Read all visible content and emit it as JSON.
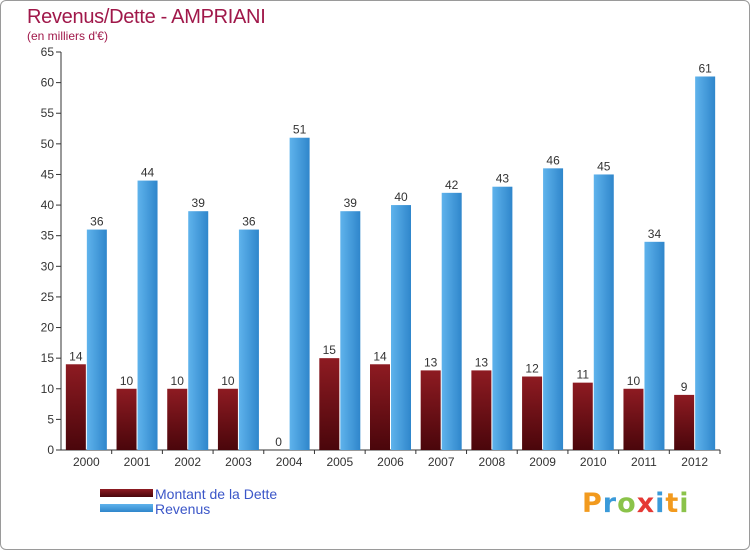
{
  "header": {
    "title": "Revenus/Dette - AMPRIANI",
    "subtitle": "(en milliers d'€)"
  },
  "chart_data": {
    "type": "bar",
    "categories": [
      "2000",
      "2001",
      "2002",
      "2003",
      "2004",
      "2005",
      "2006",
      "2007",
      "2008",
      "2009",
      "2010",
      "2011",
      "2012"
    ],
    "series": [
      {
        "name": "Montant de la Dette",
        "color": "#7a0f16",
        "values": [
          14,
          10,
          10,
          10,
          0,
          15,
          14,
          13,
          13,
          12,
          11,
          10,
          9
        ]
      },
      {
        "name": "Revenus",
        "color": "#3f9ee0",
        "values": [
          36,
          44,
          39,
          36,
          51,
          39,
          40,
          42,
          43,
          46,
          45,
          34,
          61
        ]
      }
    ],
    "yticks": [
      0,
      5,
      10,
      15,
      20,
      25,
      30,
      35,
      40,
      45,
      50,
      55,
      60,
      65
    ],
    "ylim": [
      0,
      65
    ],
    "grid": false,
    "legend_position": "bottom-left",
    "xlabel": "",
    "ylabel": ""
  },
  "logo": {
    "text": "Proxiti",
    "letter_colors": [
      "#f29a1e",
      "#3a9ad9",
      "#8bc34a",
      "#e53935",
      "#3a9ad9",
      "#f29a1e",
      "#8bc34a"
    ]
  }
}
